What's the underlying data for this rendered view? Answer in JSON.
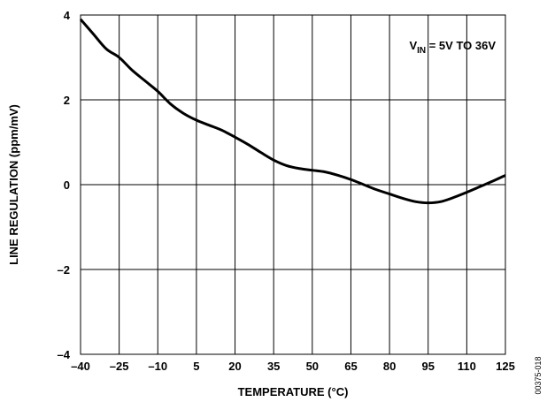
{
  "chart_data": {
    "type": "line",
    "title": "",
    "xlabel": "TEMPERATURE (°C)",
    "ylabel": "LINE REGULATION (ppm/mV)",
    "xlim": [
      -40,
      125
    ],
    "ylim": [
      -4,
      4
    ],
    "x_ticks": [
      -40,
      -25,
      -10,
      5,
      20,
      35,
      50,
      65,
      80,
      95,
      110,
      125
    ],
    "x_tick_labels": [
      "–40",
      "–25",
      "–10",
      "5",
      "20",
      "35",
      "50",
      "65",
      "80",
      "95",
      "110",
      "125"
    ],
    "y_ticks": [
      -4,
      -2,
      0,
      2,
      4
    ],
    "y_tick_labels": [
      "–4",
      "–2",
      "0",
      "2",
      "4"
    ],
    "grid": true,
    "series": [
      {
        "x": [
          -40,
          -35,
          -30,
          -25,
          -20,
          -15,
          -10,
          -5,
          0,
          5,
          10,
          15,
          20,
          25,
          30,
          35,
          40,
          45,
          50,
          55,
          60,
          65,
          70,
          75,
          80,
          85,
          90,
          95,
          100,
          105,
          110,
          115,
          120,
          125
        ],
        "y": [
          3.9,
          3.55,
          3.2,
          3.0,
          2.7,
          2.45,
          2.2,
          1.9,
          1.68,
          1.52,
          1.4,
          1.28,
          1.12,
          0.95,
          0.76,
          0.58,
          0.45,
          0.38,
          0.34,
          0.3,
          0.22,
          0.12,
          0.0,
          -0.12,
          -0.22,
          -0.32,
          -0.4,
          -0.43,
          -0.4,
          -0.3,
          -0.18,
          -0.05,
          0.08,
          0.22
        ]
      }
    ],
    "annotation": {
      "main": "V",
      "subscript": "IN",
      "rest": " = 5V TO 36V"
    },
    "figure_id": "00375-018"
  },
  "colors": {
    "line": "#000000",
    "grid": "#000000",
    "background": "#ffffff"
  }
}
